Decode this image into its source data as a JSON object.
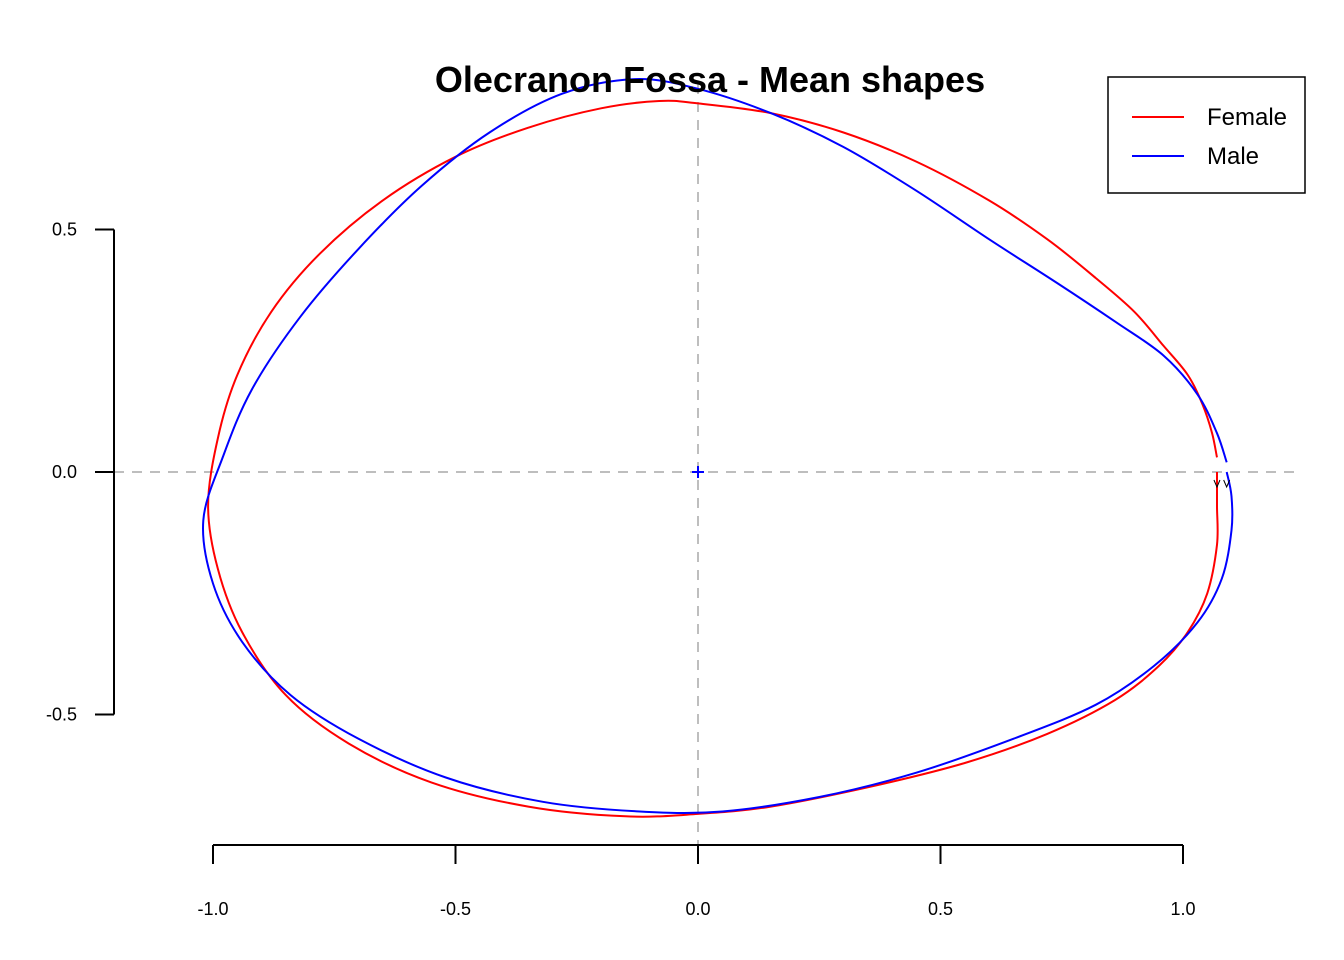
{
  "chart_data": {
    "type": "line",
    "title": "Olecranon Fossa - Mean shapes",
    "xlabel": "",
    "ylabel": "",
    "xlim": [
      -1.2,
      1.25
    ],
    "ylim": [
      -0.77,
      0.83
    ],
    "x_ticks": [
      -1.0,
      -0.5,
      0.0,
      0.5,
      1.0
    ],
    "x_tick_labels": [
      "-1.0",
      "-0.5",
      "0.0",
      "0.5",
      "1.0"
    ],
    "y_ticks": [
      -0.5,
      0.0,
      0.5
    ],
    "y_tick_labels": [
      "-0.5",
      "0.0",
      "0.5"
    ],
    "reference_lines": {
      "x": 0.0,
      "y": 0.0,
      "style": "dashed",
      "color": "#bebebe"
    },
    "centroid_marker": {
      "x": 0.0,
      "y": 0.0,
      "symbol": "+",
      "color": "#0000ff"
    },
    "legend": {
      "position": "top-right",
      "entries": [
        "Female",
        "Male"
      ]
    },
    "series": [
      {
        "name": "Female",
        "color": "#ff0000",
        "closed": false,
        "points": [
          [
            1.07,
            0.03
          ],
          [
            1.06,
            0.08
          ],
          [
            1.04,
            0.14
          ],
          [
            1.01,
            0.2
          ],
          [
            0.96,
            0.26
          ],
          [
            0.9,
            0.33
          ],
          [
            0.82,
            0.4
          ],
          [
            0.72,
            0.48
          ],
          [
            0.6,
            0.56
          ],
          [
            0.45,
            0.64
          ],
          [
            0.3,
            0.7
          ],
          [
            0.15,
            0.74
          ],
          [
            0.0,
            0.76
          ],
          [
            -0.08,
            0.765
          ],
          [
            -0.2,
            0.75
          ],
          [
            -0.35,
            0.71
          ],
          [
            -0.5,
            0.65
          ],
          [
            -0.65,
            0.56
          ],
          [
            -0.78,
            0.45
          ],
          [
            -0.88,
            0.33
          ],
          [
            -0.95,
            0.2
          ],
          [
            -0.99,
            0.07
          ],
          [
            -1.01,
            -0.07
          ],
          [
            -0.99,
            -0.2
          ],
          [
            -0.94,
            -0.33
          ],
          [
            -0.85,
            -0.46
          ],
          [
            -0.72,
            -0.56
          ],
          [
            -0.55,
            -0.64
          ],
          [
            -0.35,
            -0.69
          ],
          [
            -0.15,
            -0.71
          ],
          [
            0.0,
            -0.705
          ],
          [
            0.15,
            -0.69
          ],
          [
            0.35,
            -0.65
          ],
          [
            0.55,
            -0.6
          ],
          [
            0.72,
            -0.54
          ],
          [
            0.86,
            -0.47
          ],
          [
            0.95,
            -0.4
          ],
          [
            1.01,
            -0.33
          ],
          [
            1.05,
            -0.25
          ],
          [
            1.07,
            -0.15
          ],
          [
            1.07,
            -0.07
          ],
          [
            1.07,
            0.0
          ]
        ]
      },
      {
        "name": "Male",
        "color": "#0000ff",
        "closed": false,
        "points": [
          [
            1.09,
            0.02
          ],
          [
            1.07,
            0.08
          ],
          [
            1.03,
            0.16
          ],
          [
            0.96,
            0.24
          ],
          [
            0.86,
            0.31
          ],
          [
            0.74,
            0.39
          ],
          [
            0.6,
            0.48
          ],
          [
            0.45,
            0.58
          ],
          [
            0.3,
            0.67
          ],
          [
            0.15,
            0.74
          ],
          [
            0.0,
            0.79
          ],
          [
            -0.13,
            0.81
          ],
          [
            -0.28,
            0.78
          ],
          [
            -0.43,
            0.7
          ],
          [
            -0.57,
            0.59
          ],
          [
            -0.7,
            0.46
          ],
          [
            -0.82,
            0.32
          ],
          [
            -0.92,
            0.17
          ],
          [
            -0.98,
            0.03
          ],
          [
            -1.02,
            -0.1
          ],
          [
            -1.0,
            -0.23
          ],
          [
            -0.94,
            -0.35
          ],
          [
            -0.84,
            -0.46
          ],
          [
            -0.7,
            -0.55
          ],
          [
            -0.52,
            -0.63
          ],
          [
            -0.32,
            -0.68
          ],
          [
            -0.12,
            -0.7
          ],
          [
            0.05,
            -0.7
          ],
          [
            0.25,
            -0.67
          ],
          [
            0.45,
            -0.62
          ],
          [
            0.65,
            -0.55
          ],
          [
            0.82,
            -0.48
          ],
          [
            0.94,
            -0.4
          ],
          [
            1.03,
            -0.31
          ],
          [
            1.08,
            -0.22
          ],
          [
            1.1,
            -0.12
          ],
          [
            1.1,
            -0.05
          ],
          [
            1.09,
            0.0
          ]
        ]
      }
    ]
  }
}
